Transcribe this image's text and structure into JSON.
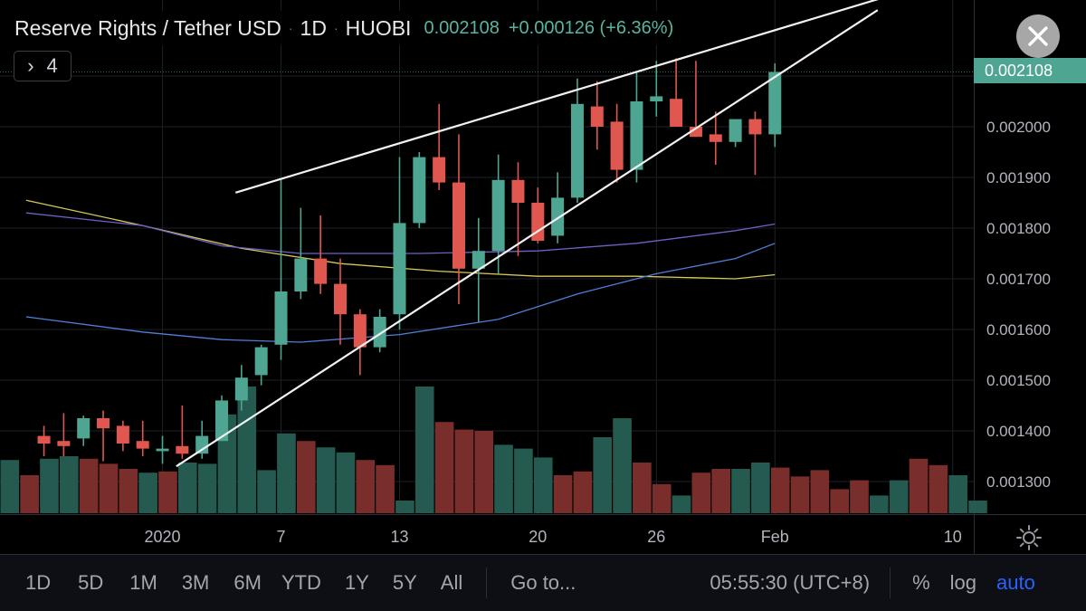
{
  "header": {
    "symbol": "Reserve Rights / Tether USD",
    "interval": "1D",
    "exchange": "HUOBI",
    "last_price": "0.002108",
    "change": "+0.000126 (+6.36%)",
    "sep": "·"
  },
  "indicators_button": {
    "chevron": "›",
    "count": "4"
  },
  "current_price_label": "0.002108",
  "bottom_bar": {
    "ranges": [
      "1D",
      "5D",
      "1M",
      "3M",
      "6M",
      "YTD",
      "1Y",
      "5Y",
      "All"
    ],
    "goto": "Go to...",
    "clock": "05:55:30 (UTC+8)",
    "percent": "%",
    "log": "log",
    "auto": "auto"
  },
  "colors": {
    "up": "#4ea592",
    "down": "#e0574f",
    "up_vol": "#245a50",
    "down_vol": "#7a2e2b",
    "ma_yellow": "#d8c75a",
    "ma_purple": "#7060c8",
    "ma_blue": "#4f7fd6",
    "accent": "#2962ff"
  },
  "chart_data": {
    "type": "candlestick",
    "y_axis": {
      "range": [
        0.00123,
        0.0021
      ],
      "ticks": [
        "0.001300",
        "0.001400",
        "0.001500",
        "0.001600",
        "0.001700",
        "0.001800",
        "0.001900",
        "0.002000",
        "0.002100"
      ],
      "tick_values": [
        0.0013,
        0.0014,
        0.0015,
        0.0016,
        0.0017,
        0.0018,
        0.0019,
        0.002,
        0.0021
      ]
    },
    "x_axis": {
      "labels": [
        "2020",
        "7",
        "13",
        "20",
        "26",
        "Feb",
        "10"
      ],
      "label_days": [
        1,
        7,
        13,
        20,
        26,
        32,
        41
      ]
    },
    "candles": [
      {
        "day": -5,
        "o": 0.00139,
        "h": 0.00141,
        "l": 0.00135,
        "c": 0.001375
      },
      {
        "day": -4,
        "o": 0.00138,
        "h": 0.001435,
        "l": 0.00135,
        "c": 0.00137
      },
      {
        "day": -3,
        "o": 0.001385,
        "h": 0.00143,
        "l": 0.00137,
        "c": 0.001425
      },
      {
        "day": -2,
        "o": 0.001425,
        "h": 0.00144,
        "l": 0.00134,
        "c": 0.001405
      },
      {
        "day": -1,
        "o": 0.00141,
        "h": 0.00142,
        "l": 0.00136,
        "c": 0.001375
      },
      {
        "day": 0,
        "o": 0.00138,
        "h": 0.00142,
        "l": 0.00135,
        "c": 0.001365
      },
      {
        "day": 1,
        "o": 0.00136,
        "h": 0.00139,
        "l": 0.001335,
        "c": 0.001365
      },
      {
        "day": 2,
        "o": 0.00137,
        "h": 0.00145,
        "l": 0.001345,
        "c": 0.001355
      },
      {
        "day": 3,
        "o": 0.001355,
        "h": 0.00142,
        "l": 0.001345,
        "c": 0.00139
      },
      {
        "day": 4,
        "o": 0.00138,
        "h": 0.00147,
        "l": 0.00138,
        "c": 0.00146
      },
      {
        "day": 5,
        "o": 0.00146,
        "h": 0.00153,
        "l": 0.00144,
        "c": 0.001505
      },
      {
        "day": 6,
        "o": 0.00151,
        "h": 0.00157,
        "l": 0.00149,
        "c": 0.001565
      },
      {
        "day": 7,
        "o": 0.00157,
        "h": 0.001895,
        "l": 0.00154,
        "c": 0.001675
      },
      {
        "day": 8,
        "o": 0.001675,
        "h": 0.00184,
        "l": 0.00166,
        "c": 0.00174
      },
      {
        "day": 9,
        "o": 0.00174,
        "h": 0.001825,
        "l": 0.00167,
        "c": 0.00169
      },
      {
        "day": 10,
        "o": 0.00169,
        "h": 0.00174,
        "l": 0.00157,
        "c": 0.00163
      },
      {
        "day": 11,
        "o": 0.00163,
        "h": 0.00164,
        "l": 0.00151,
        "c": 0.001565
      },
      {
        "day": 12,
        "o": 0.001565,
        "h": 0.00164,
        "l": 0.001555,
        "c": 0.001625
      },
      {
        "day": 13,
        "o": 0.00163,
        "h": 0.00194,
        "l": 0.0016,
        "c": 0.00181
      },
      {
        "day": 14,
        "o": 0.00181,
        "h": 0.00195,
        "l": 0.0018,
        "c": 0.00194
      },
      {
        "day": 15,
        "o": 0.00194,
        "h": 0.002045,
        "l": 0.001875,
        "c": 0.00189
      },
      {
        "day": 16,
        "o": 0.00189,
        "h": 0.001985,
        "l": 0.00165,
        "c": 0.00172
      },
      {
        "day": 17,
        "o": 0.00172,
        "h": 0.00182,
        "l": 0.001615,
        "c": 0.001755
      },
      {
        "day": 18,
        "o": 0.001755,
        "h": 0.001945,
        "l": 0.00171,
        "c": 0.001895
      },
      {
        "day": 19,
        "o": 0.001895,
        "h": 0.00193,
        "l": 0.001745,
        "c": 0.00185
      },
      {
        "day": 20,
        "o": 0.00185,
        "h": 0.00188,
        "l": 0.00177,
        "c": 0.001775
      },
      {
        "day": 21,
        "o": 0.001785,
        "h": 0.00191,
        "l": 0.00177,
        "c": 0.00186
      },
      {
        "day": 22,
        "o": 0.00186,
        "h": 0.002095,
        "l": 0.00185,
        "c": 0.002045
      },
      {
        "day": 23,
        "o": 0.00204,
        "h": 0.00209,
        "l": 0.001955,
        "c": 0.002
      },
      {
        "day": 24,
        "o": 0.00201,
        "h": 0.002045,
        "l": 0.00189,
        "c": 0.001915
      },
      {
        "day": 25,
        "o": 0.001915,
        "h": 0.00211,
        "l": 0.00189,
        "c": 0.00205
      },
      {
        "day": 26,
        "o": 0.00205,
        "h": 0.00213,
        "l": 0.00202,
        "c": 0.00206
      },
      {
        "day": 27,
        "o": 0.002055,
        "h": 0.002135,
        "l": 0.002,
        "c": 0.002
      },
      {
        "day": 28,
        "o": 0.002,
        "h": 0.00213,
        "l": 0.00198,
        "c": 0.00198
      },
      {
        "day": 29,
        "o": 0.001985,
        "h": 0.00203,
        "l": 0.001925,
        "c": 0.00197
      },
      {
        "day": 30,
        "o": 0.00197,
        "h": 0.002015,
        "l": 0.00196,
        "c": 0.002015
      },
      {
        "day": 31,
        "o": 0.002015,
        "h": 0.00203,
        "l": 0.001905,
        "c": 0.001985
      },
      {
        "day": 32,
        "o": 0.001985,
        "h": 0.002125,
        "l": 0.00196,
        "c": 0.002108
      }
    ],
    "volume_relative": [
      0.42,
      0.3,
      0.43,
      0.45,
      0.43,
      0.39,
      0.35,
      0.32,
      0.33,
      0.4,
      0.39,
      0.78,
      1.0,
      0.34,
      0.63,
      0.57,
      0.52,
      0.48,
      0.42,
      0.38,
      0.1,
      1.0,
      0.72,
      0.66,
      0.65,
      0.54,
      0.51,
      0.44,
      0.3,
      0.33,
      0.6,
      0.75,
      0.4,
      0.23,
      0.14,
      0.32,
      0.35,
      0.35,
      0.4,
      0.36,
      0.29,
      0.34,
      0.19,
      0.26,
      0.14,
      0.26,
      0.43,
      0.38,
      0.3,
      0.1
    ],
    "volume_up": [
      true,
      false,
      true,
      true,
      false,
      false,
      false,
      true,
      false,
      true,
      true,
      true,
      true,
      true,
      true,
      false,
      true,
      true,
      false,
      false,
      true,
      true,
      false,
      false,
      false,
      true,
      true,
      true,
      false,
      false,
      true,
      true,
      false,
      false,
      true,
      false,
      false,
      true,
      true,
      false,
      false,
      false,
      false,
      false,
      true,
      true,
      false,
      false,
      true,
      true
    ],
    "moving_averages": [
      {
        "color": "yellow",
        "points": [
          [
            -5.9,
            0.001855
          ],
          [
            0,
            0.001805
          ],
          [
            5,
            0.00176
          ],
          [
            10,
            0.00173
          ],
          [
            15,
            0.001715
          ],
          [
            20,
            0.001705
          ],
          [
            25,
            0.001705
          ],
          [
            30,
            0.0017
          ],
          [
            32,
            0.001708
          ]
        ]
      },
      {
        "color": "purple",
        "points": [
          [
            -5.9,
            0.00183
          ],
          [
            0,
            0.001805
          ],
          [
            4,
            0.001765
          ],
          [
            8,
            0.00175
          ],
          [
            14,
            0.00175
          ],
          [
            20,
            0.001755
          ],
          [
            25,
            0.00177
          ],
          [
            30,
            0.001795
          ],
          [
            32,
            0.001808
          ]
        ]
      },
      {
        "color": "blue",
        "points": [
          [
            -5.9,
            0.001625
          ],
          [
            0,
            0.001595
          ],
          [
            4,
            0.00158
          ],
          [
            8,
            0.001575
          ],
          [
            13,
            0.00159
          ],
          [
            18,
            0.00162
          ],
          [
            22,
            0.00167
          ],
          [
            26,
            0.00171
          ],
          [
            30,
            0.00174
          ],
          [
            32,
            0.00177
          ]
        ]
      }
    ],
    "trendlines": [
      {
        "from": [
          4.7,
          0.00187
        ],
        "to": [
          37.5,
          0.002255
        ]
      },
      {
        "from": [
          1.7,
          0.00133
        ],
        "to": [
          37.2,
          0.00223
        ]
      }
    ]
  }
}
